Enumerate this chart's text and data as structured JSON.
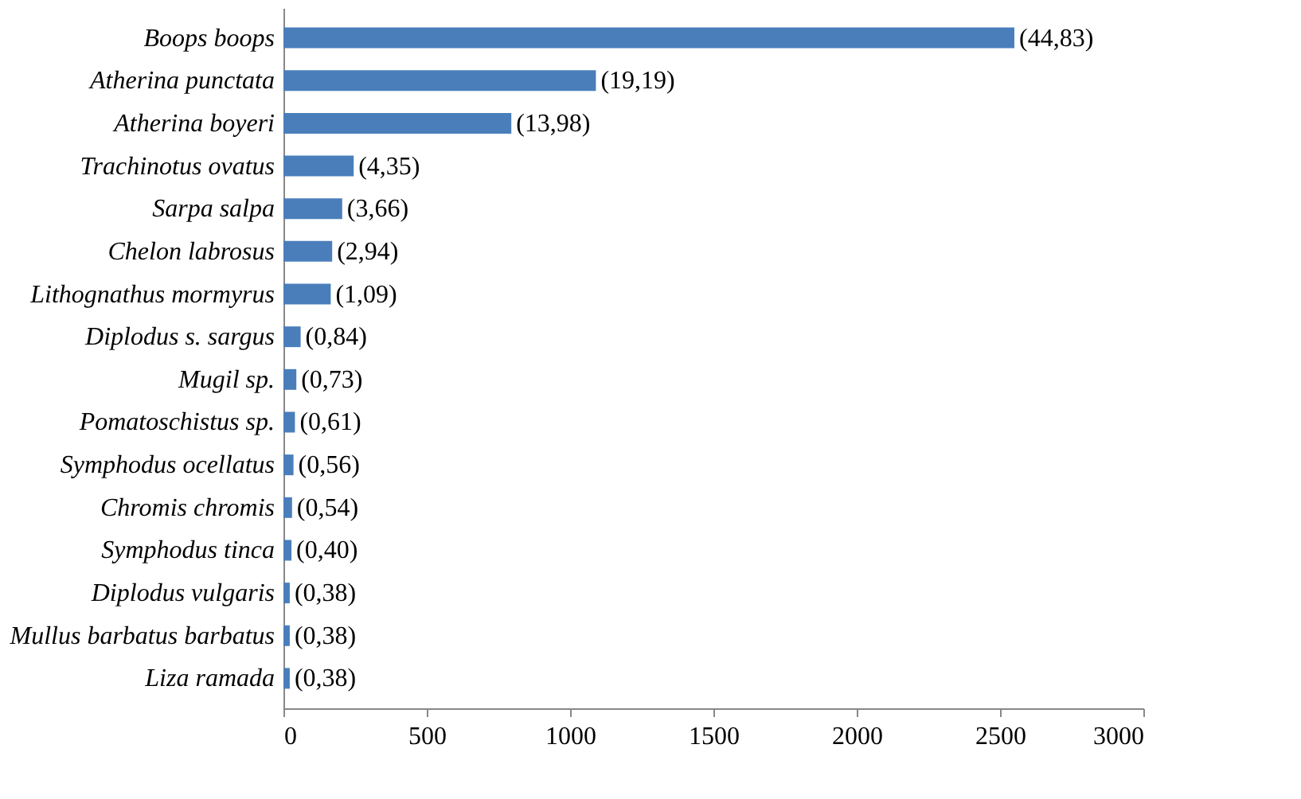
{
  "chart_data": {
    "type": "bar",
    "orientation": "horizontal",
    "categories": [
      "Boops boops",
      "Atherina punctata",
      "Atherina boyeri",
      "Trachinotus ovatus",
      "Sarpa salpa",
      "Chelon labrosus",
      "Lithognathus mormyrus",
      "Diplodus s. sargus",
      "Mugil sp.",
      "Pomatoschistus sp.",
      "Symphodus ocellatus",
      "Chromis chromis",
      "Symphodus tinca",
      "Diplodus vulgaris",
      "Mullus barbatus barbatus",
      "Liza ramada"
    ],
    "values": [
      2550,
      1090,
      795,
      245,
      205,
      170,
      165,
      60,
      45,
      40,
      35,
      30,
      28,
      22,
      22,
      22
    ],
    "annotations": [
      {
        "text": "(44,83)",
        "x": 2550,
        "y": "Boops boops"
      },
      {
        "text": "(19,19)",
        "x": 1090,
        "y": "Atherina punctata"
      },
      {
        "text": "(13,98)",
        "x": 795,
        "y": "Atherina boyeri"
      },
      {
        "text": "(4,35)",
        "x": 245,
        "y": "Trachinotus ovatus"
      },
      {
        "text": "(3,66)",
        "x": 205,
        "y": "Sarpa salpa"
      },
      {
        "text": "(2,94)",
        "x": 170,
        "y": "Chelon labrosus"
      },
      {
        "text": "(1,09)",
        "x": 165,
        "y": "Lithognathus mormyrus"
      },
      {
        "text": "(0,84)",
        "x": 60,
        "y": "Diplodus s. sargus"
      },
      {
        "text": "(0,73)",
        "x": 45,
        "y": "Mugil sp."
      },
      {
        "text": "(0,61)",
        "x": 40,
        "y": "Pomatoschistus sp."
      },
      {
        "text": "(0,56)",
        "x": 35,
        "y": "Symphodus ocellatus"
      },
      {
        "text": "(0,54)",
        "x": 30,
        "y": "Chromis chromis"
      },
      {
        "text": "(0,40)",
        "x": 28,
        "y": "Symphodus tinca"
      },
      {
        "text": "(0,38)",
        "x": 22,
        "y": "Diplodus vulgaris"
      },
      {
        "text": "(0,38)",
        "x": 22,
        "y": "Mullus barbatus barbatus"
      },
      {
        "text": "(0,38)",
        "x": 22,
        "y": "Liza ramada"
      }
    ],
    "color": "#4a7ebb",
    "xlim": [
      0,
      3000
    ],
    "xticks": [
      0,
      500,
      1000,
      1500,
      2000,
      2500,
      3000
    ],
    "grid": false
  }
}
